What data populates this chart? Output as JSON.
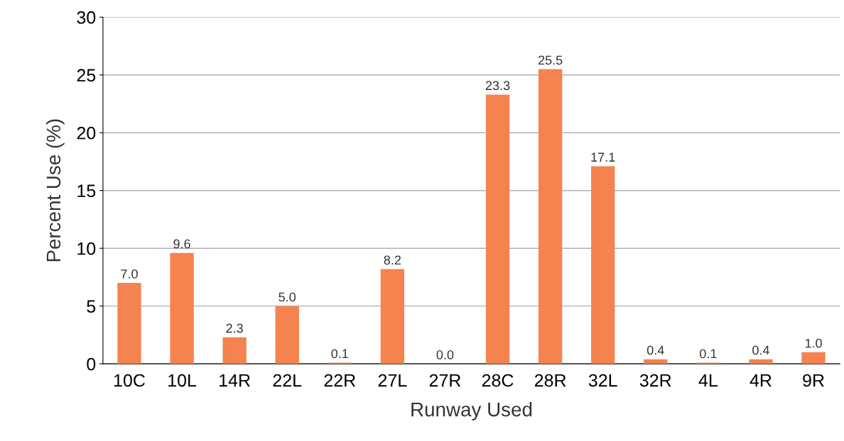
{
  "chart_data": {
    "type": "bar",
    "xlabel": "Runway Used",
    "ylabel": "Percent Use (%)",
    "categories": [
      "10C",
      "10L",
      "14R",
      "22L",
      "22R",
      "27L",
      "27R",
      "28C",
      "28R",
      "32L",
      "32R",
      "4L",
      "4R",
      "9R"
    ],
    "values": [
      7.0,
      9.6,
      2.3,
      5.0,
      0.1,
      8.2,
      0.0,
      23.3,
      25.5,
      17.1,
      0.4,
      0.1,
      0.4,
      1.0
    ],
    "value_labels": [
      "7.0",
      "9.6",
      "2.3",
      "5.0",
      "0.1",
      "8.2",
      "0.0",
      "23.3",
      "25.5",
      "17.1",
      "0.4",
      "0.1",
      "0.4",
      "1.0"
    ],
    "color": "#f4834f",
    "ylim": [
      0,
      30
    ],
    "yticks": [
      0,
      5,
      10,
      15,
      20,
      25,
      30
    ],
    "grid": "y",
    "legend": false
  }
}
